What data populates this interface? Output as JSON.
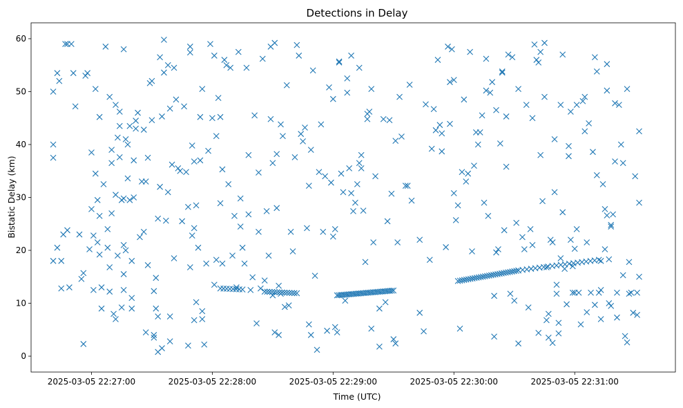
{
  "chart_data": {
    "type": "scatter",
    "title": "Detections in Delay",
    "xlabel": "Time (UTC)",
    "ylabel": "Bistatic Delay (km)",
    "marker": "x",
    "marker_color": "#1f77b4",
    "grid": false,
    "x_unit": "seconds after 2025-03-05 22:27:00 UTC",
    "xlim": [
      -30,
      290
    ],
    "ylim": [
      -3,
      63
    ],
    "x_ticks": [
      0,
      60,
      120,
      180,
      240
    ],
    "x_tick_labels": [
      "2025-03-05 22:27:00",
      "2025-03-05 22:28:00",
      "2025-03-05 22:29:00",
      "2025-03-05 22:30:00",
      "2025-03-05 22:31:00"
    ],
    "y_ticks": [
      0,
      10,
      20,
      30,
      40,
      50,
      60
    ],
    "y_tick_labels": [
      "0",
      "10",
      "20",
      "30",
      "40",
      "50",
      "60"
    ],
    "random_detections": [
      [
        -19,
        50
      ],
      [
        -19,
        40
      ],
      [
        -19,
        37.5
      ],
      [
        -19,
        18
      ],
      [
        -17,
        53.5
      ],
      [
        -17,
        20.5
      ],
      [
        -16,
        52
      ],
      [
        -15,
        12.8
      ],
      [
        -15,
        18
      ],
      [
        -14,
        23
      ],
      [
        -13,
        59
      ],
      [
        -12,
        59
      ],
      [
        -12,
        23.8
      ],
      [
        -11,
        13
      ],
      [
        -10,
        59
      ],
      [
        -9,
        53.5
      ],
      [
        -8,
        47.2
      ],
      [
        -6,
        23
      ],
      [
        -5,
        14.6
      ],
      [
        -4,
        2.3
      ],
      [
        -4,
        15.7
      ],
      [
        -3,
        53
      ],
      [
        -2,
        53.5
      ],
      [
        -1,
        20.2
      ],
      [
        0,
        38.5
      ],
      [
        0,
        27.8
      ],
      [
        1,
        22.8
      ],
      [
        1,
        12.5
      ],
      [
        2,
        50.5
      ],
      [
        2,
        34.5
      ],
      [
        3,
        29.5
      ],
      [
        3,
        21.5
      ],
      [
        4,
        45.2
      ],
      [
        4,
        26.5
      ],
      [
        4,
        19.2
      ],
      [
        5,
        9
      ],
      [
        5,
        13
      ],
      [
        6,
        32.5
      ],
      [
        7,
        58.5
      ],
      [
        8,
        24
      ],
      [
        8,
        20.5
      ],
      [
        9,
        49
      ],
      [
        9,
        16.8
      ],
      [
        9,
        12.2
      ],
      [
        10,
        39
      ],
      [
        10,
        36.5
      ],
      [
        10,
        27
      ],
      [
        11,
        8
      ],
      [
        12,
        47.5
      ],
      [
        12,
        30.5
      ],
      [
        12,
        7
      ],
      [
        13,
        41.3
      ],
      [
        13,
        19
      ],
      [
        14,
        46.2
      ],
      [
        14,
        43.5
      ],
      [
        14,
        37.6
      ],
      [
        15,
        29.5
      ],
      [
        15,
        9.2
      ],
      [
        16,
        58
      ],
      [
        16,
        29.8
      ],
      [
        16,
        21
      ],
      [
        16,
        15.5
      ],
      [
        16,
        12.5
      ],
      [
        17,
        41
      ],
      [
        17,
        20
      ],
      [
        18,
        40
      ],
      [
        18,
        33.6
      ],
      [
        19,
        43.5
      ],
      [
        19,
        29.5
      ],
      [
        20,
        18
      ],
      [
        20,
        11
      ],
      [
        20,
        9
      ],
      [
        21,
        37
      ],
      [
        21,
        30
      ],
      [
        22,
        44.5
      ],
      [
        22,
        43
      ],
      [
        23,
        46
      ],
      [
        24,
        22.5
      ],
      [
        25,
        33
      ],
      [
        26,
        42.8
      ],
      [
        26,
        23.5
      ],
      [
        27,
        4.5
      ],
      [
        27,
        33
      ],
      [
        28,
        37.5
      ],
      [
        28,
        17.2
      ],
      [
        29,
        51.6
      ],
      [
        30,
        52
      ],
      [
        30,
        44.6
      ],
      [
        31,
        4
      ],
      [
        31,
        3.5
      ],
      [
        31,
        12.3
      ],
      [
        32,
        14.8
      ],
      [
        32,
        9
      ],
      [
        33,
        0.8
      ],
      [
        33,
        7.5
      ],
      [
        33,
        26
      ],
      [
        34,
        32
      ],
      [
        34,
        56.5
      ],
      [
        35,
        1.5
      ],
      [
        35,
        45.3
      ],
      [
        36,
        53.6
      ],
      [
        36,
        59.8
      ],
      [
        37,
        25.6
      ],
      [
        38,
        31
      ],
      [
        38,
        55
      ],
      [
        39,
        46.8
      ],
      [
        39,
        2.8
      ],
      [
        39,
        7.5
      ],
      [
        40,
        36.2
      ],
      [
        41,
        54.5
      ],
      [
        41,
        18.5
      ],
      [
        42,
        48.5
      ],
      [
        43,
        35.5
      ],
      [
        44,
        35
      ],
      [
        45,
        25.5
      ],
      [
        46,
        47.2
      ],
      [
        47,
        34.8
      ],
      [
        48,
        2
      ],
      [
        48,
        28.2
      ],
      [
        49,
        57.4
      ],
      [
        49,
        58.5
      ],
      [
        49,
        16.8
      ],
      [
        50,
        39.8
      ],
      [
        50,
        22.8
      ],
      [
        51,
        36.8
      ],
      [
        51,
        24.2
      ],
      [
        51,
        6.8
      ],
      [
        52,
        10.2
      ],
      [
        52,
        28.5
      ],
      [
        53,
        20.5
      ],
      [
        54,
        37
      ],
      [
        54,
        45.2
      ],
      [
        55,
        50.5
      ],
      [
        55,
        8.5
      ],
      [
        55,
        7
      ],
      [
        56,
        2.2
      ],
      [
        57,
        17.5
      ],
      [
        58,
        38.8
      ],
      [
        59,
        59
      ],
      [
        60,
        45
      ],
      [
        61,
        56.8
      ],
      [
        61,
        13.5
      ],
      [
        62,
        41.6
      ],
      [
        62,
        18.2
      ],
      [
        63,
        48.8
      ],
      [
        64,
        28.9
      ],
      [
        64,
        45.2
      ],
      [
        65,
        17.5
      ],
      [
        65,
        35.3
      ],
      [
        66,
        56
      ],
      [
        67,
        55
      ],
      [
        68,
        32.5
      ],
      [
        69,
        54.5
      ],
      [
        70,
        19
      ],
      [
        71,
        26.5
      ],
      [
        72,
        13
      ],
      [
        73,
        57.5
      ],
      [
        74,
        24.5
      ],
      [
        74,
        29.8
      ],
      [
        75,
        20.5
      ],
      [
        76,
        17.5
      ],
      [
        77,
        54.5
      ],
      [
        78,
        26.8
      ],
      [
        78,
        38
      ],
      [
        79,
        12.5
      ],
      [
        80,
        14.9
      ],
      [
        81,
        45.5
      ],
      [
        82,
        6.2
      ],
      [
        83,
        34.7
      ],
      [
        83,
        23.5
      ],
      [
        84,
        12.8
      ],
      [
        85,
        56.2
      ],
      [
        86,
        14.3
      ],
      [
        87,
        27.4
      ],
      [
        88,
        19
      ],
      [
        89,
        58.5
      ],
      [
        89,
        44.8
      ],
      [
        90,
        36.5
      ],
      [
        90,
        11.5
      ],
      [
        91,
        59.2
      ],
      [
        91,
        4.5
      ],
      [
        92,
        38.2
      ],
      [
        92,
        28
      ],
      [
        93,
        4
      ],
      [
        93,
        13.3
      ],
      [
        94,
        43.8
      ],
      [
        94,
        11.8
      ],
      [
        95,
        41.6
      ],
      [
        96,
        9.3
      ],
      [
        97,
        51.2
      ],
      [
        98,
        9.6
      ],
      [
        99,
        23.5
      ],
      [
        100,
        19.8
      ],
      [
        101,
        37.6
      ],
      [
        102,
        58.8
      ],
      [
        103,
        56.8
      ],
      [
        104,
        42
      ],
      [
        105,
        40.6
      ],
      [
        106,
        43.2
      ],
      [
        107,
        24.2
      ],
      [
        108,
        32.2
      ],
      [
        108,
        6
      ],
      [
        109,
        39
      ],
      [
        109,
        4
      ],
      [
        110,
        54
      ],
      [
        111,
        15.2
      ],
      [
        112,
        1.2
      ],
      [
        113,
        34.8
      ],
      [
        114,
        43.8
      ],
      [
        115,
        23.5
      ],
      [
        116,
        34
      ],
      [
        117,
        4.8
      ],
      [
        118,
        50.8
      ],
      [
        119,
        32.8
      ],
      [
        120,
        22.6
      ],
      [
        120,
        48.6
      ],
      [
        121,
        24
      ],
      [
        121,
        5.5
      ],
      [
        122,
        4.5
      ],
      [
        123,
        55.5
      ],
      [
        123,
        55.7
      ],
      [
        124,
        34.5
      ],
      [
        125,
        31
      ],
      [
        126,
        10.5
      ],
      [
        127,
        52.5
      ],
      [
        127,
        49.8
      ],
      [
        128,
        35.5
      ],
      [
        129,
        56.8
      ],
      [
        129,
        30.8
      ],
      [
        130,
        27.4
      ],
      [
        131,
        29
      ],
      [
        132,
        32.5
      ],
      [
        133,
        54.5
      ],
      [
        133,
        36.5
      ],
      [
        134,
        38
      ],
      [
        134,
        35.5
      ],
      [
        135,
        27.5
      ],
      [
        136,
        17.8
      ],
      [
        137,
        45.8
      ],
      [
        137,
        44.8
      ],
      [
        138,
        46.2
      ],
      [
        139,
        50.5
      ],
      [
        139,
        5.2
      ],
      [
        140,
        21.5
      ],
      [
        141,
        34
      ],
      [
        143,
        1.8
      ],
      [
        143,
        9
      ],
      [
        145,
        44.8
      ],
      [
        146,
        10.2
      ],
      [
        147,
        25.5
      ],
      [
        148,
        44.6
      ],
      [
        149,
        30.7
      ],
      [
        150,
        3.2
      ],
      [
        151,
        2.4
      ],
      [
        151,
        40.7
      ],
      [
        152,
        21.5
      ],
      [
        153,
        49
      ],
      [
        154,
        41.5
      ],
      [
        156,
        32.2
      ],
      [
        157,
        32.2
      ],
      [
        158,
        51.3
      ],
      [
        159,
        29.4
      ],
      [
        163,
        22
      ],
      [
        163,
        8.2
      ],
      [
        165,
        4.7
      ],
      [
        166,
        47.6
      ],
      [
        168,
        18.2
      ],
      [
        169,
        39.2
      ],
      [
        170,
        46.7
      ],
      [
        171,
        42.7
      ],
      [
        172,
        56
      ],
      [
        173,
        43.7
      ],
      [
        174,
        38.7
      ],
      [
        174,
        42.1
      ],
      [
        176,
        20.6
      ],
      [
        177,
        58.5
      ],
      [
        178,
        43.9
      ],
      [
        178,
        51.8
      ],
      [
        179,
        58
      ],
      [
        180,
        52.2
      ],
      [
        180,
        30.8
      ],
      [
        181,
        25.7
      ],
      [
        182,
        28.5
      ],
      [
        183,
        5.2
      ],
      [
        184,
        34.8
      ],
      [
        185,
        48.5
      ],
      [
        186,
        33
      ],
      [
        187,
        34.5
      ],
      [
        188,
        57.5
      ],
      [
        189,
        19.8
      ],
      [
        190,
        36
      ],
      [
        191,
        42.3
      ],
      [
        192,
        40
      ],
      [
        193,
        42.3
      ],
      [
        194,
        45.5
      ],
      [
        195,
        29
      ],
      [
        196,
        56.2
      ],
      [
        196,
        50.2
      ],
      [
        197,
        26.5
      ],
      [
        198,
        49.8
      ],
      [
        199,
        51.8
      ],
      [
        200,
        11.4
      ],
      [
        200,
        3.7
      ],
      [
        201,
        19.6
      ],
      [
        201,
        46.5
      ],
      [
        202,
        20.2
      ],
      [
        203,
        40.2
      ],
      [
        204,
        53.6
      ],
      [
        204,
        53.8
      ],
      [
        205,
        23.8
      ],
      [
        206,
        35.8
      ],
      [
        206,
        45.3
      ],
      [
        207,
        57
      ],
      [
        208,
        11.8
      ],
      [
        209,
        56.5
      ],
      [
        210,
        10.5
      ],
      [
        211,
        25.2
      ],
      [
        212,
        2.4
      ],
      [
        212,
        50.5
      ],
      [
        214,
        22.5
      ],
      [
        215,
        20.2
      ],
      [
        216,
        47.5
      ],
      [
        217,
        9.2
      ],
      [
        218,
        24
      ],
      [
        219,
        21
      ],
      [
        219,
        45
      ],
      [
        220,
        58.9
      ],
      [
        221,
        56
      ],
      [
        222,
        4.4
      ],
      [
        222,
        55.5
      ],
      [
        223,
        38
      ],
      [
        223,
        57.5
      ],
      [
        224,
        29.3
      ],
      [
        225,
        59.2
      ],
      [
        225,
        49
      ],
      [
        226,
        6.8
      ],
      [
        226,
        16.8
      ],
      [
        227,
        8
      ],
      [
        227,
        3.5
      ],
      [
        228,
        22
      ],
      [
        229,
        21.5
      ],
      [
        229,
        2.5
      ],
      [
        230,
        31
      ],
      [
        230,
        41
      ],
      [
        231,
        11.8
      ],
      [
        231,
        13.5
      ],
      [
        232,
        6.3
      ],
      [
        232,
        4.3
      ],
      [
        233,
        47.5
      ],
      [
        233,
        18.5
      ],
      [
        234,
        27.2
      ],
      [
        234,
        57
      ],
      [
        235,
        16.5
      ],
      [
        236,
        9.8
      ],
      [
        237,
        39.7
      ],
      [
        237,
        37.8
      ],
      [
        238,
        46.2
      ],
      [
        238,
        22
      ],
      [
        239,
        17
      ],
      [
        239,
        12
      ],
      [
        240,
        12
      ],
      [
        240,
        20.3
      ],
      [
        241,
        24
      ],
      [
        241,
        47.5
      ],
      [
        242,
        12
      ],
      [
        243,
        6
      ],
      [
        244,
        48.2
      ],
      [
        245,
        49
      ],
      [
        245,
        42.5
      ],
      [
        246,
        21.5
      ],
      [
        246,
        8.3
      ],
      [
        247,
        44
      ],
      [
        248,
        12
      ],
      [
        249,
        38.6
      ],
      [
        250,
        56.5
      ],
      [
        250,
        9.7
      ],
      [
        251,
        53.8
      ],
      [
        251,
        34.2
      ],
      [
        252,
        12
      ],
      [
        253,
        18
      ],
      [
        253,
        12.5
      ],
      [
        253,
        7
      ],
      [
        254,
        32.5
      ],
      [
        255,
        20.2
      ],
      [
        255,
        27.8
      ],
      [
        256,
        55.2
      ],
      [
        256,
        26.6
      ],
      [
        256,
        50.2
      ],
      [
        257,
        18.3
      ],
      [
        257,
        10
      ],
      [
        258,
        24.5
      ],
      [
        258,
        24.8
      ],
      [
        258,
        9.5
      ],
      [
        259,
        26.8
      ],
      [
        260,
        47.8
      ],
      [
        260,
        36.8
      ],
      [
        261,
        12
      ],
      [
        261,
        7.3
      ],
      [
        262,
        47.5
      ],
      [
        263,
        40
      ],
      [
        264,
        15.3
      ],
      [
        264,
        36.5
      ],
      [
        265,
        3.8
      ],
      [
        266,
        50.5
      ],
      [
        266,
        2.6
      ],
      [
        267,
        17.8
      ],
      [
        267,
        11.8
      ],
      [
        268,
        12
      ],
      [
        269,
        8.2
      ],
      [
        270,
        34
      ],
      [
        271,
        12
      ],
      [
        271,
        7.8
      ],
      [
        272,
        42.5
      ],
      [
        272,
        29
      ],
      [
        272,
        15
      ]
    ],
    "tracks": [
      {
        "x_start": 64,
        "y_start": 12.8,
        "x_end": 75,
        "y_end": 12.6,
        "points": 8
      },
      {
        "x_start": 86,
        "y_start": 12.2,
        "x_end": 102,
        "y_end": 11.9,
        "points": 14
      },
      {
        "x_start": 122,
        "y_start": 11.5,
        "x_end": 150,
        "y_end": 12.4,
        "points": 34
      },
      {
        "x_start": 182,
        "y_start": 14.2,
        "x_end": 212,
        "y_end": 16.2,
        "points": 30
      },
      {
        "x_start": 212,
        "y_start": 16.2,
        "x_end": 252,
        "y_end": 18.2,
        "points": 20
      }
    ]
  }
}
